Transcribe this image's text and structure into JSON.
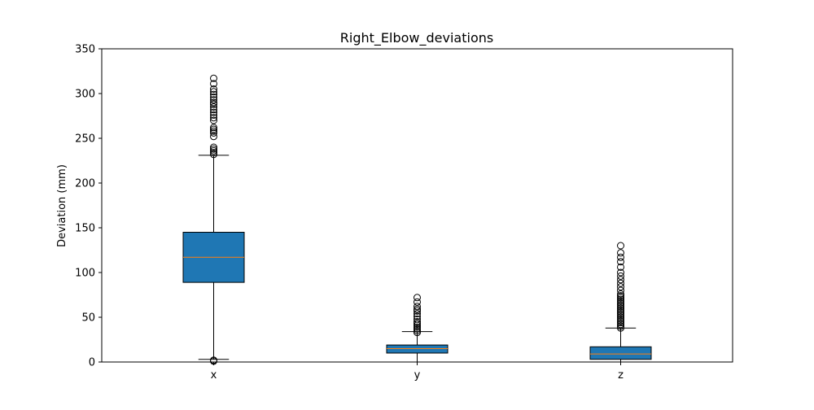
{
  "chart_data": {
    "type": "boxplot",
    "title": "Right_Elbow_deviations",
    "xlabel": "",
    "ylabel": "Deviation (mm)",
    "ylim": [
      0,
      350
    ],
    "yticks": [
      0,
      50,
      100,
      150,
      200,
      250,
      300,
      350
    ],
    "categories": [
      "x",
      "y",
      "z"
    ],
    "boxes": [
      {
        "label": "x",
        "whisker_low": 3,
        "q1": 89,
        "median": 117,
        "q3": 145,
        "whisker_high": 231,
        "outliers": [
          1,
          2,
          232,
          234,
          236,
          238,
          240,
          252,
          256,
          258,
          260,
          262,
          270,
          273,
          276,
          279,
          282,
          285,
          288,
          290,
          293,
          296,
          299,
          302,
          305,
          311,
          317
        ]
      },
      {
        "label": "y",
        "whisker_low": 0,
        "q1": 10,
        "median": 15,
        "q3": 19,
        "whisker_high": 34,
        "outliers": [
          33,
          35,
          37,
          39,
          41,
          43,
          45,
          48,
          51,
          54,
          57,
          59,
          62,
          67,
          72
        ]
      },
      {
        "label": "z",
        "whisker_low": 0,
        "q1": 3,
        "median": 9,
        "q3": 17,
        "whisker_high": 38,
        "outliers": [
          38,
          40,
          42,
          44,
          46,
          48,
          50,
          52,
          54,
          56,
          58,
          60,
          62,
          64,
          66,
          68,
          70,
          72,
          74,
          76,
          80,
          84,
          88,
          92,
          96,
          100,
          106,
          112,
          117,
          122,
          130
        ]
      }
    ],
    "box_color": "#1f77b4",
    "median_color": "#ff7f0e",
    "grid": false,
    "legend": "none"
  }
}
